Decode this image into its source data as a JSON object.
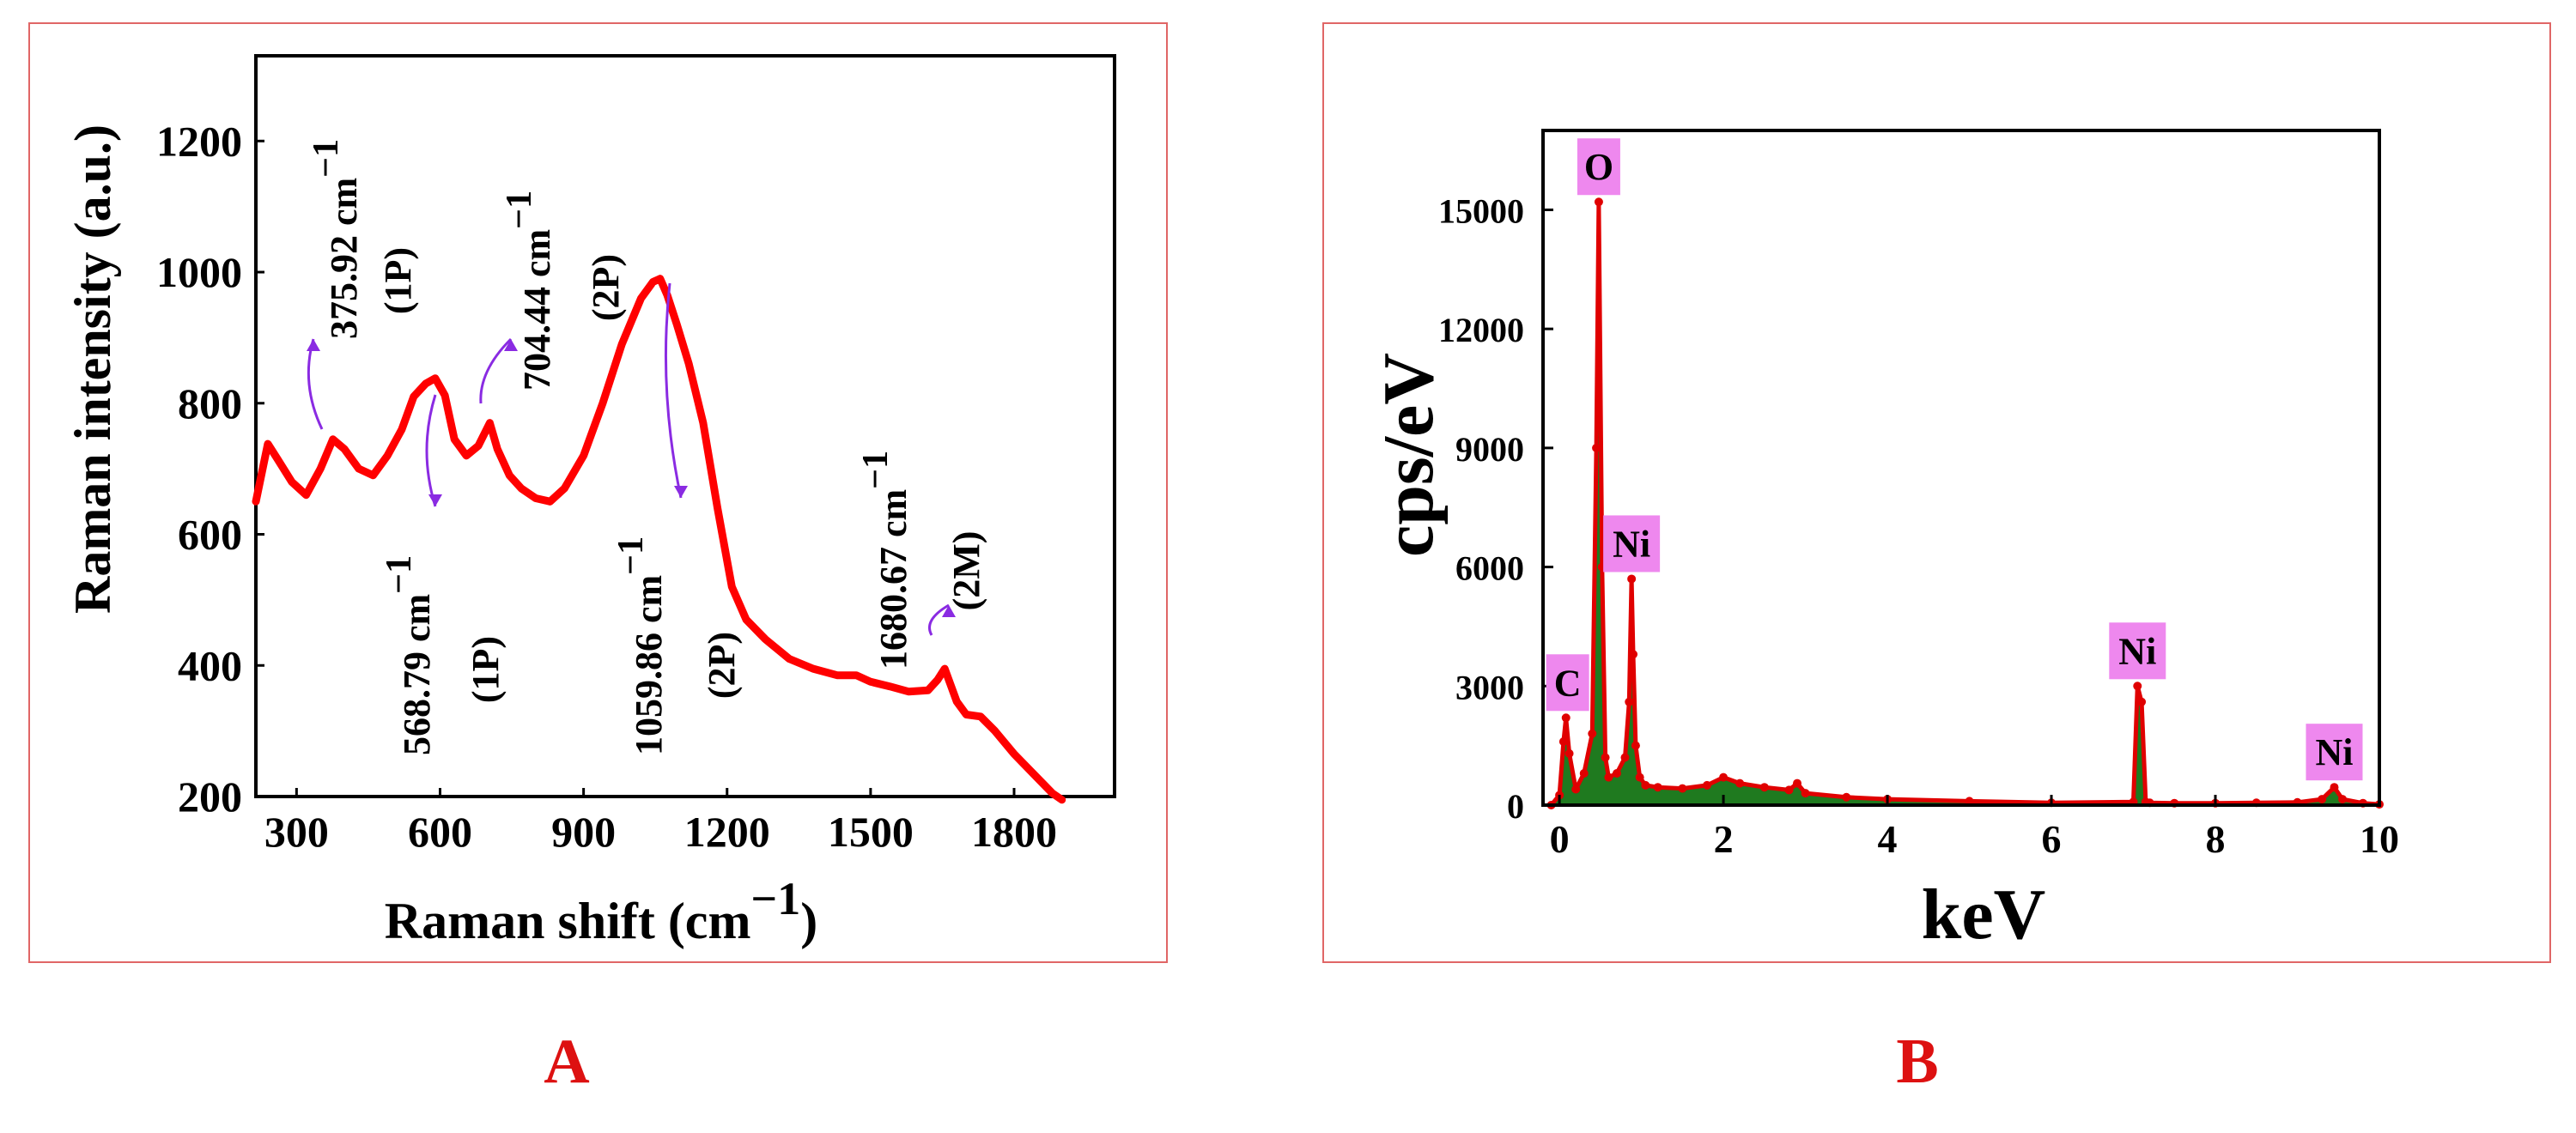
{
  "colors": {
    "frame": "#e06666",
    "raman_line": "#ff0000",
    "arrow": "#8a2be2",
    "eds_line": "#e00000",
    "eds_fill": "#1f7a1f",
    "label_bg": "#ee88ee",
    "panel_letter": "#dd1111"
  },
  "panels": {
    "a_letter": "A",
    "b_letter": "B"
  },
  "chart_data": [
    {
      "id": "A",
      "type": "line",
      "xlabel": "Raman shift (cm",
      "xlabel_sup": "−1",
      "xlabel_end": ")",
      "ylabel": "Raman intensity (a.u.)",
      "xlim": [
        215,
        2010
      ],
      "ylim": [
        200,
        1330
      ],
      "xticks": [
        300,
        600,
        900,
        1200,
        1500,
        1800
      ],
      "yticks": [
        200,
        400,
        600,
        800,
        1000,
        1200
      ],
      "series": [
        {
          "name": "Raman spectrum",
          "x": [
            215,
            240,
            260,
            290,
            320,
            350,
            376,
            400,
            430,
            460,
            490,
            520,
            545,
            570,
            590,
            610,
            630,
            655,
            680,
            704,
            720,
            745,
            770,
            800,
            830,
            860,
            900,
            940,
            980,
            1020,
            1045,
            1060,
            1075,
            1095,
            1120,
            1150,
            1180,
            1210,
            1240,
            1280,
            1330,
            1380,
            1430,
            1470,
            1500,
            1540,
            1580,
            1620,
            1640,
            1655,
            1680,
            1700,
            1730,
            1760,
            1800,
            1840,
            1880,
            1900
          ],
          "y": [
            650,
            738,
            715,
            680,
            660,
            700,
            745,
            730,
            700,
            690,
            720,
            760,
            810,
            830,
            838,
            812,
            745,
            720,
            735,
            770,
            730,
            690,
            670,
            655,
            650,
            670,
            720,
            800,
            890,
            960,
            985,
            990,
            965,
            920,
            860,
            770,
            640,
            520,
            470,
            440,
            410,
            395,
            385,
            385,
            375,
            368,
            360,
            362,
            378,
            395,
            345,
            325,
            322,
            300,
            265,
            235,
            205,
            195
          ]
        }
      ],
      "annotations": [
        {
          "text": "375.92 cm",
          "sup": "−1",
          "mode": "(1P)",
          "x": 376
        },
        {
          "text": "568.79 cm",
          "sup": "−1",
          "mode": "(1P)",
          "x": 569
        },
        {
          "text": "704.44 cm",
          "sup": "−1",
          "mode": "(2P)",
          "x": 704
        },
        {
          "text": "1059.86 cm",
          "sup": "−1",
          "mode": "(2P)",
          "x": 1060
        },
        {
          "text": "1680.67 cm",
          "sup": "−1",
          "mode": "(2M)",
          "x": 1681
        }
      ]
    },
    {
      "id": "B",
      "type": "line",
      "xlabel": "keV",
      "ylabel": "cps/eV",
      "xlim": [
        -0.2,
        10
      ],
      "ylim": [
        0,
        17000
      ],
      "xticks": [
        0,
        2,
        4,
        6,
        8,
        10
      ],
      "yticks": [
        0,
        3000,
        6000,
        9000,
        12000,
        15000
      ],
      "series": [
        {
          "name": "EDS spectrum",
          "x": [
            -0.1,
            0.0,
            0.05,
            0.08,
            0.12,
            0.2,
            0.3,
            0.4,
            0.45,
            0.48,
            0.52,
            0.56,
            0.6,
            0.7,
            0.8,
            0.85,
            0.88,
            0.9,
            0.93,
            0.98,
            1.05,
            1.2,
            1.5,
            1.8,
            2.0,
            2.2,
            2.5,
            2.8,
            2.9,
            3.0,
            3.5,
            4.0,
            5.0,
            6.0,
            7.0,
            7.05,
            7.1,
            7.15,
            7.2,
            7.5,
            8.0,
            8.5,
            9.0,
            9.3,
            9.45,
            9.55,
            9.8,
            10.0
          ],
          "y": [
            0,
            250,
            1600,
            2200,
            1300,
            400,
            800,
            1800,
            9000,
            15200,
            6000,
            1200,
            700,
            800,
            1200,
            2600,
            5700,
            3800,
            1500,
            700,
            500,
            450,
            420,
            500,
            700,
            550,
            450,
            380,
            550,
            300,
            200,
            150,
            100,
            60,
            80,
            3000,
            2600,
            80,
            60,
            50,
            50,
            60,
            70,
            150,
            450,
            150,
            50,
            20
          ]
        }
      ],
      "peak_labels": [
        {
          "text": "C",
          "x": 0.1,
          "y": 2200
        },
        {
          "text": "O",
          "x": 0.48,
          "y": 15200
        },
        {
          "text": "Ni",
          "x": 0.88,
          "y": 5700
        },
        {
          "text": "Ni",
          "x": 7.05,
          "y": 3000
        },
        {
          "text": "Ni",
          "x": 9.45,
          "y": 450
        }
      ]
    }
  ]
}
